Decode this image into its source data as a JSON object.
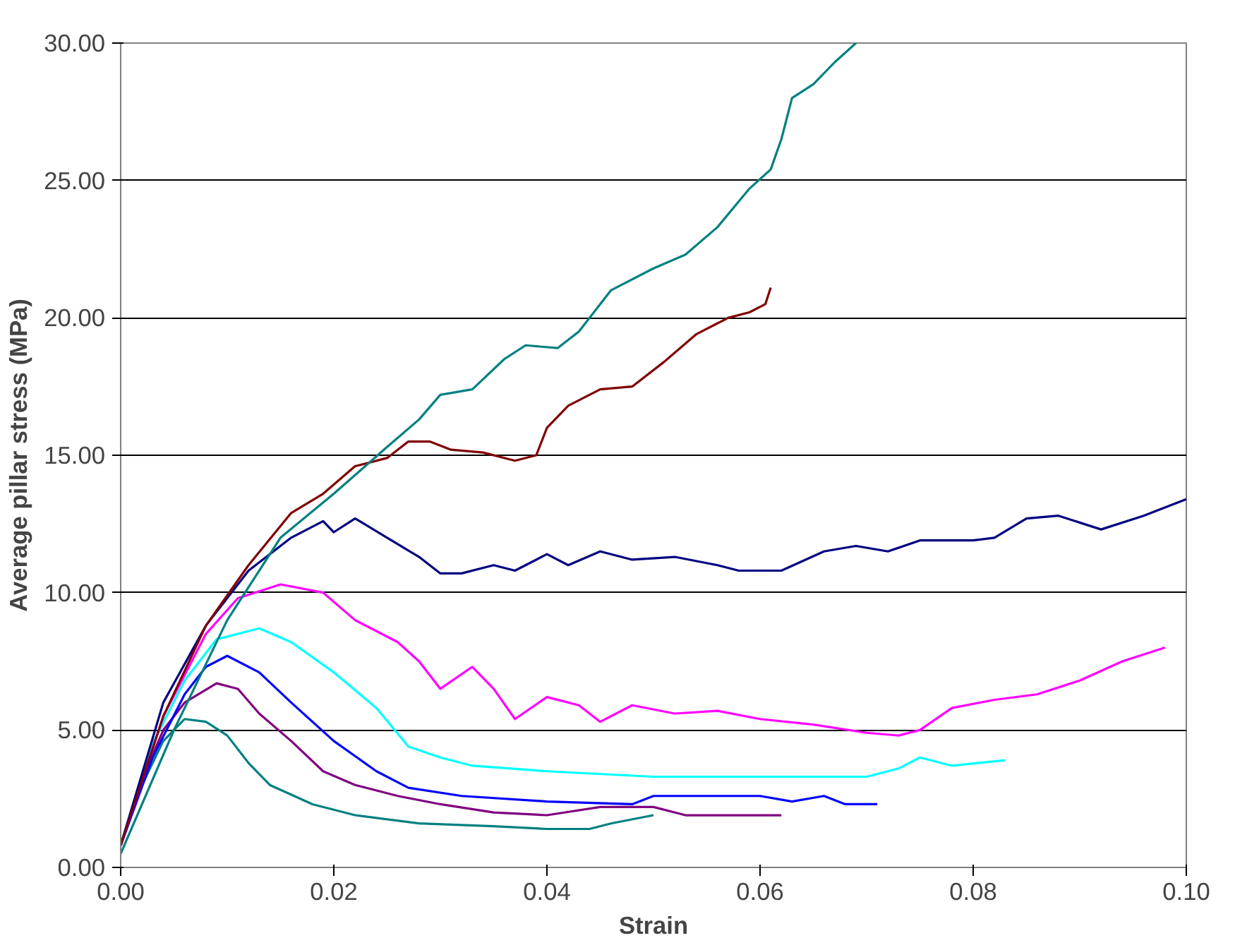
{
  "chart_data": {
    "type": "line",
    "xlabel": "Strain",
    "ylabel": "Average pillar stress (MPa)",
    "xlim": [
      0,
      0.1
    ],
    "ylim": [
      0,
      30
    ],
    "xticks": [
      {
        "value": 0,
        "label": "0.00"
      },
      {
        "value": 0.02,
        "label": "0.02"
      },
      {
        "value": 0.04,
        "label": "0.04"
      },
      {
        "value": 0.06,
        "label": "0.06"
      },
      {
        "value": 0.08,
        "label": "0.08"
      },
      {
        "value": 0.1,
        "label": "0.10"
      }
    ],
    "yticks": [
      {
        "value": 0,
        "label": "0.00"
      },
      {
        "value": 5,
        "label": "5.00"
      },
      {
        "value": 10,
        "label": "10.00"
      },
      {
        "value": 15,
        "label": "15.00"
      },
      {
        "value": 20,
        "label": "20.00"
      },
      {
        "value": 25,
        "label": "25.00"
      },
      {
        "value": 30,
        "label": "30.00"
      }
    ],
    "grid": "y",
    "marker": "none",
    "line_style": "solid",
    "series": [
      {
        "color": "#008080",
        "x": [
          0,
          0.002,
          0.004,
          0.006,
          0.008,
          0.01,
          0.012,
          0.014,
          0.018,
          0.022,
          0.028,
          0.035,
          0.04,
          0.044,
          0.046,
          0.05
        ],
        "values": [
          0.8,
          3.0,
          4.6,
          5.4,
          5.3,
          4.8,
          3.8,
          3.0,
          2.3,
          1.9,
          1.6,
          1.5,
          1.4,
          1.4,
          1.6,
          1.9
        ]
      },
      {
        "color": "#800080",
        "x": [
          0,
          0.002,
          0.004,
          0.006,
          0.009,
          0.011,
          0.013,
          0.016,
          0.019,
          0.022,
          0.026,
          0.03,
          0.035,
          0.04,
          0.045,
          0.05,
          0.053,
          0.058,
          0.062
        ],
        "values": [
          0.8,
          3.2,
          5.0,
          6.0,
          6.7,
          6.5,
          5.6,
          4.6,
          3.5,
          3.0,
          2.6,
          2.3,
          2.0,
          1.9,
          2.2,
          2.2,
          1.9,
          1.9,
          1.9
        ]
      },
      {
        "color": "#0000ff",
        "x": [
          0,
          0.003,
          0.006,
          0.008,
          0.01,
          0.013,
          0.016,
          0.02,
          0.024,
          0.027,
          0.032,
          0.04,
          0.048,
          0.05,
          0.06,
          0.063,
          0.066,
          0.068,
          0.071
        ],
        "values": [
          0.8,
          4.0,
          6.3,
          7.3,
          7.7,
          7.1,
          6.0,
          4.6,
          3.5,
          2.9,
          2.6,
          2.4,
          2.3,
          2.6,
          2.6,
          2.4,
          2.6,
          2.3,
          2.3
        ]
      },
      {
        "color": "#00ffff",
        "x": [
          0,
          0.003,
          0.006,
          0.009,
          0.013,
          0.016,
          0.02,
          0.024,
          0.027,
          0.03,
          0.033,
          0.04,
          0.05,
          0.06,
          0.07,
          0.073,
          0.075,
          0.078,
          0.083
        ],
        "values": [
          0.8,
          4.5,
          6.8,
          8.3,
          8.7,
          8.2,
          7.1,
          5.8,
          4.4,
          4.0,
          3.7,
          3.5,
          3.3,
          3.3,
          3.3,
          3.6,
          4.0,
          3.7,
          3.9
        ]
      },
      {
        "color": "#ff00ff",
        "x": [
          0,
          0.004,
          0.008,
          0.011,
          0.015,
          0.019,
          0.022,
          0.026,
          0.028,
          0.03,
          0.033,
          0.035,
          0.037,
          0.04,
          0.043,
          0.045,
          0.048,
          0.052,
          0.056,
          0.06,
          0.065,
          0.07,
          0.073,
          0.075,
          0.078,
          0.082,
          0.086,
          0.09,
          0.094,
          0.098
        ],
        "values": [
          0.8,
          5.5,
          8.5,
          9.8,
          10.3,
          10.0,
          9.0,
          8.2,
          7.5,
          6.5,
          7.3,
          6.5,
          5.4,
          6.2,
          5.9,
          5.3,
          5.9,
          5.6,
          5.7,
          5.4,
          5.2,
          4.9,
          4.8,
          5.0,
          5.8,
          6.1,
          6.3,
          6.8,
          7.5,
          8.0
        ]
      },
      {
        "color": "#000080",
        "x": [
          0,
          0.004,
          0.008,
          0.012,
          0.016,
          0.019,
          0.02,
          0.022,
          0.025,
          0.028,
          0.03,
          0.032,
          0.035,
          0.037,
          0.04,
          0.042,
          0.045,
          0.048,
          0.052,
          0.056,
          0.058,
          0.062,
          0.066,
          0.069,
          0.072,
          0.075,
          0.08,
          0.082,
          0.085,
          0.088,
          0.092,
          0.096,
          0.1
        ],
        "values": [
          0.8,
          6.0,
          8.8,
          10.8,
          12.0,
          12.6,
          12.2,
          12.7,
          12.0,
          11.3,
          10.7,
          10.7,
          11.0,
          10.8,
          11.4,
          11.0,
          11.5,
          11.2,
          11.3,
          11.0,
          10.8,
          10.8,
          11.5,
          11.7,
          11.5,
          11.9,
          11.9,
          12.0,
          12.7,
          12.8,
          12.3,
          12.8,
          13.4
        ]
      },
      {
        "color": "#800000",
        "x": [
          0,
          0.004,
          0.008,
          0.012,
          0.016,
          0.019,
          0.022,
          0.025,
          0.027,
          0.029,
          0.031,
          0.034,
          0.037,
          0.039,
          0.04,
          0.042,
          0.045,
          0.048,
          0.051,
          0.054,
          0.057,
          0.059,
          0.0605,
          0.061
        ],
        "values": [
          0.8,
          5.5,
          8.8,
          11.0,
          12.9,
          13.6,
          14.6,
          14.9,
          15.5,
          15.5,
          15.2,
          15.1,
          14.8,
          15.0,
          16.0,
          16.8,
          17.4,
          17.5,
          18.4,
          19.4,
          20.0,
          20.2,
          20.5,
          21.1
        ]
      },
      {
        "color": "#008080",
        "x": [
          0,
          0.005,
          0.01,
          0.015,
          0.02,
          0.025,
          0.028,
          0.03,
          0.033,
          0.036,
          0.038,
          0.041,
          0.043,
          0.046,
          0.05,
          0.053,
          0.056,
          0.059,
          0.061,
          0.062,
          0.063,
          0.065,
          0.067,
          0.069
        ],
        "values": [
          0.5,
          5.0,
          9.0,
          12.0,
          13.6,
          15.3,
          16.3,
          17.2,
          17.4,
          18.5,
          19.0,
          18.9,
          19.5,
          21.0,
          21.8,
          22.3,
          23.3,
          24.7,
          25.4,
          26.5,
          28.0,
          28.5,
          29.3,
          30.0
        ]
      }
    ]
  }
}
